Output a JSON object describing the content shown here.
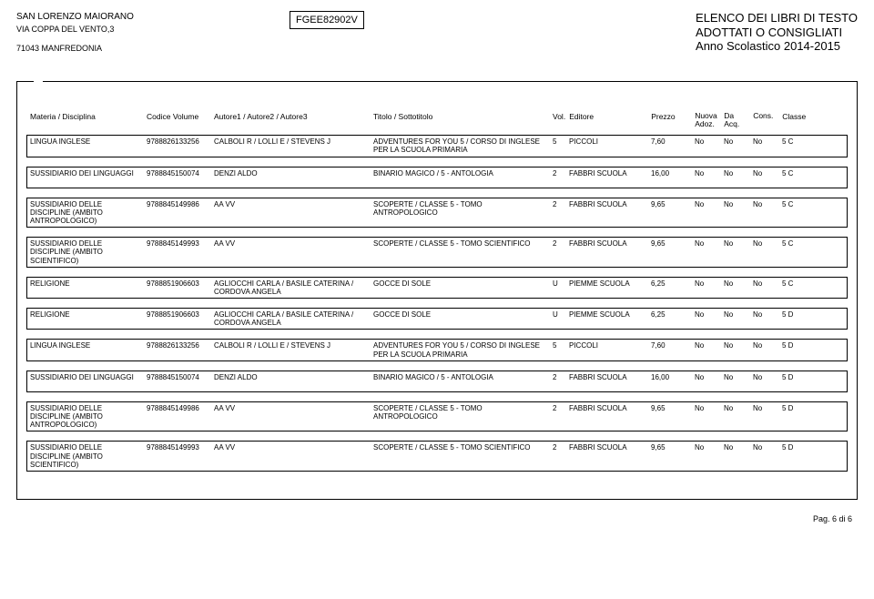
{
  "header": {
    "school_name": "SAN LORENZO MAIORANO",
    "address": "VIA COPPA DEL VENTO,3",
    "city": "71043  MANFREDONIA",
    "code": "FGEE82902V",
    "title_line1": "ELENCO DEI LIBRI DI TESTO",
    "title_line2": "ADOTTATI O CONSIGLIATI",
    "year": "Anno Scolastico 2014-2015"
  },
  "columns": {
    "materia": "Materia / Disciplina",
    "codice": "Codice Volume",
    "autore": "Autore1 / Autore2 / Autore3",
    "titolo": "Titolo / Sottotitolo",
    "vol": "Vol.",
    "editore": "Editore",
    "prezzo": "Prezzo",
    "nuova": "Nuova Adoz.",
    "da": "Da Acq.",
    "cons": "Cons.",
    "classe": "Classe"
  },
  "rows": [
    {
      "materia": "LINGUA INGLESE",
      "codice": "9788826133256",
      "autore": "CALBOLI R / LOLLI E / STEVENS J",
      "titolo": "ADVENTURES FOR YOU 5 / CORSO DI INGLESE PER LA SCUOLA PRIMARIA",
      "vol": "5",
      "editore": "PICCOLI",
      "prezzo": "7,60",
      "nuova": "No",
      "da": "No",
      "cons": "No",
      "classe": "5 C"
    },
    {
      "materia": "SUSSIDIARIO DEI LINGUAGGI",
      "codice": "9788845150074",
      "autore": "DENZI ALDO",
      "titolo": "BINARIO MAGICO / 5 - ANTOLOGIA",
      "vol": "2",
      "editore": "FABBRI SCUOLA",
      "prezzo": "16,00",
      "nuova": "No",
      "da": "No",
      "cons": "No",
      "classe": "5 C"
    },
    {
      "materia": "SUSSIDIARIO DELLE DISCIPLINE (AMBITO ANTROPOLOGICO)",
      "codice": "9788845149986",
      "autore": "AA VV",
      "titolo": "SCOPERTE / CLASSE 5 - TOMO ANTROPOLOGICO",
      "vol": "2",
      "editore": "FABBRI SCUOLA",
      "prezzo": "9,65",
      "nuova": "No",
      "da": "No",
      "cons": "No",
      "classe": "5 C"
    },
    {
      "materia": "SUSSIDIARIO DELLE DISCIPLINE (AMBITO SCIENTIFICO)",
      "codice": "9788845149993",
      "autore": "AA VV",
      "titolo": "SCOPERTE / CLASSE 5 - TOMO SCIENTIFICO",
      "vol": "2",
      "editore": "FABBRI SCUOLA",
      "prezzo": "9,65",
      "nuova": "No",
      "da": "No",
      "cons": "No",
      "classe": "5 C"
    },
    {
      "materia": "RELIGIONE",
      "codice": "9788851906603",
      "autore": "AGLIOCCHI CARLA / BASILE CATERINA / CORDOVA ANGELA",
      "titolo": "GOCCE DI SOLE",
      "vol": "U",
      "editore": "PIEMME SCUOLA",
      "prezzo": "6,25",
      "nuova": "No",
      "da": "No",
      "cons": "No",
      "classe": "5 C"
    },
    {
      "materia": "RELIGIONE",
      "codice": "9788851906603",
      "autore": "AGLIOCCHI CARLA / BASILE CATERINA / CORDOVA ANGELA",
      "titolo": "GOCCE DI SOLE",
      "vol": "U",
      "editore": "PIEMME SCUOLA",
      "prezzo": "6,25",
      "nuova": "No",
      "da": "No",
      "cons": "No",
      "classe": "5 D"
    },
    {
      "materia": "LINGUA INGLESE",
      "codice": "9788826133256",
      "autore": "CALBOLI R / LOLLI E / STEVENS J",
      "titolo": "ADVENTURES FOR YOU 5 / CORSO DI INGLESE PER LA SCUOLA PRIMARIA",
      "vol": "5",
      "editore": "PICCOLI",
      "prezzo": "7,60",
      "nuova": "No",
      "da": "No",
      "cons": "No",
      "classe": "5 D"
    },
    {
      "materia": "SUSSIDIARIO DEI LINGUAGGI",
      "codice": "9788845150074",
      "autore": "DENZI ALDO",
      "titolo": "BINARIO MAGICO / 5 - ANTOLOGIA",
      "vol": "2",
      "editore": "FABBRI SCUOLA",
      "prezzo": "16,00",
      "nuova": "No",
      "da": "No",
      "cons": "No",
      "classe": "5 D"
    },
    {
      "materia": "SUSSIDIARIO DELLE DISCIPLINE (AMBITO ANTROPOLOGICO)",
      "codice": "9788845149986",
      "autore": "AA VV",
      "titolo": "SCOPERTE / CLASSE 5 - TOMO ANTROPOLOGICO",
      "vol": "2",
      "editore": "FABBRI SCUOLA",
      "prezzo": "9,65",
      "nuova": "No",
      "da": "No",
      "cons": "No",
      "classe": "5 D"
    },
    {
      "materia": "SUSSIDIARIO DELLE DISCIPLINE (AMBITO SCIENTIFICO)",
      "codice": "9788845149993",
      "autore": "AA VV",
      "titolo": "SCOPERTE / CLASSE 5 - TOMO SCIENTIFICO",
      "vol": "2",
      "editore": "FABBRI SCUOLA",
      "prezzo": "9,65",
      "nuova": "No",
      "da": "No",
      "cons": "No",
      "classe": "5 D"
    }
  ],
  "footer": {
    "page": "Pag. 6 di 6"
  }
}
